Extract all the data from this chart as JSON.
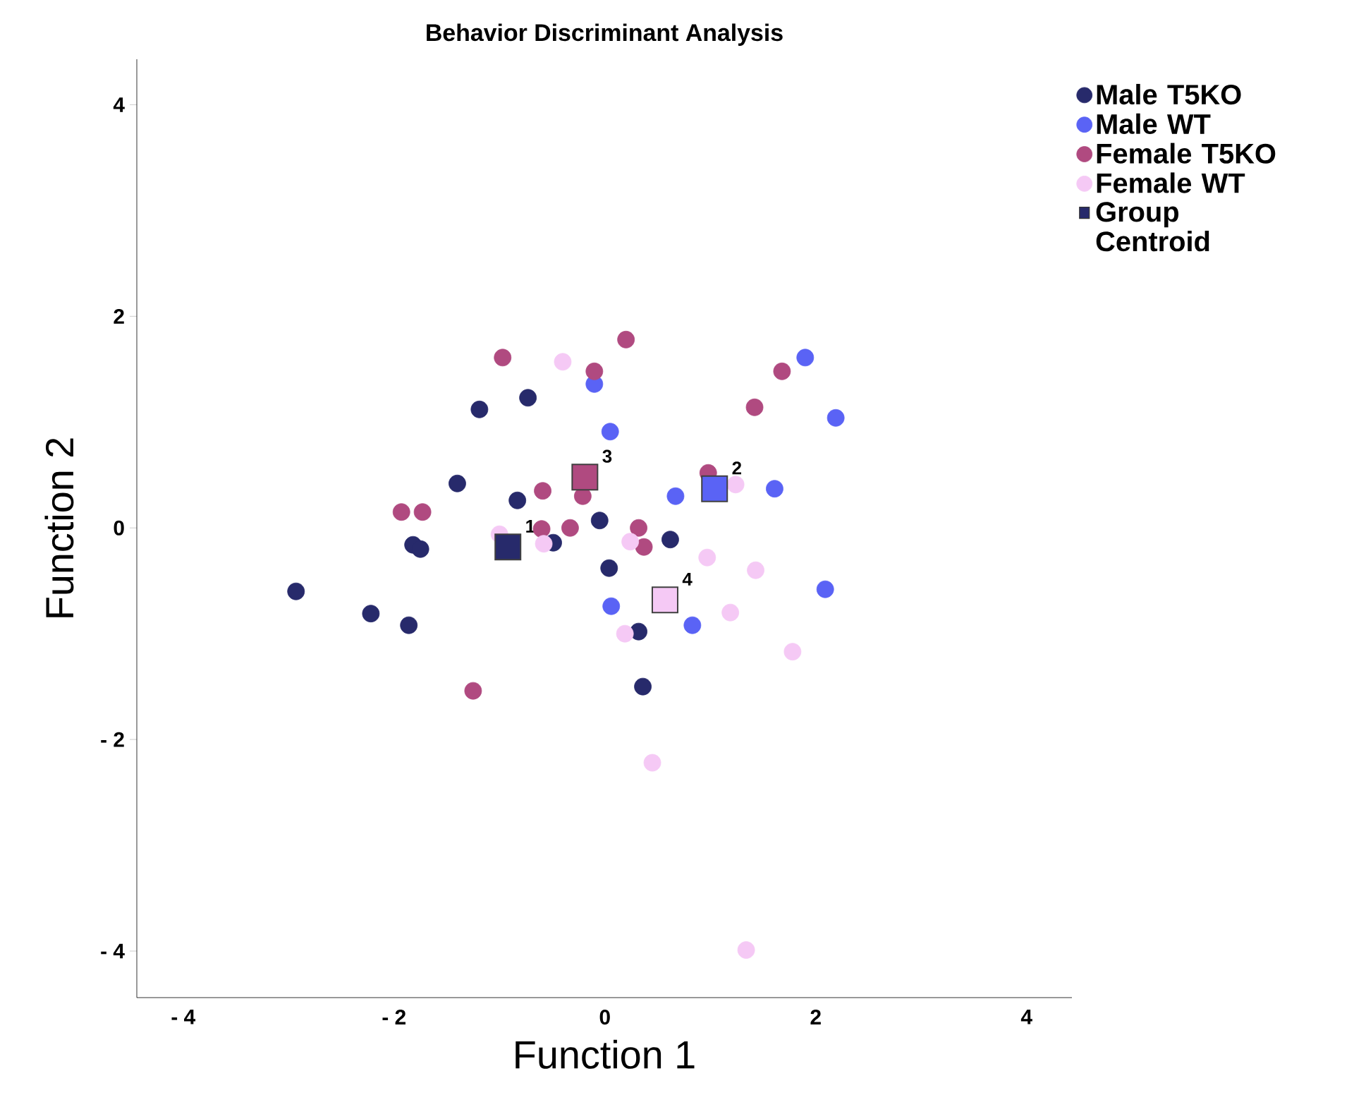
{
  "chart_data": {
    "type": "scatter",
    "title": "Behavior Discriminant Analysis",
    "xlabel": "Function 1",
    "ylabel": "Function 2",
    "xlim": [
      -4.44,
      4.43
    ],
    "ylim": [
      -4.44,
      4.43
    ],
    "xticks": [
      {
        "value": -4,
        "label": "- 4"
      },
      {
        "value": -2,
        "label": "- 2"
      },
      0,
      2,
      4
    ],
    "yticks": [
      {
        "value": -4,
        "label": "- 4"
      },
      {
        "value": -2,
        "label": "- 2"
      },
      0,
      2,
      4
    ],
    "grid": false,
    "legend": "top right",
    "series": [
      {
        "name": "Male T5KO",
        "color": "#272a6b",
        "marker": "circle",
        "x": [
          -1.19,
          -0.73,
          -1.4,
          -0.83,
          -1.82,
          -1.75,
          -0.49,
          -2.93,
          -2.22,
          -1.86,
          -0.05,
          0.62,
          0.04,
          0.32,
          0.36
        ],
        "values": [
          1.12,
          1.23,
          0.42,
          0.26,
          -0.16,
          -0.2,
          -0.14,
          -0.6,
          -0.81,
          -0.92,
          0.07,
          -0.11,
          -0.38,
          -0.98,
          -1.5
        ]
      },
      {
        "name": "Male WT",
        "color": "#5a63f5",
        "marker": "circle",
        "x": [
          -0.1,
          0.05,
          1.9,
          2.19,
          0.67,
          1.61,
          2.09,
          0.06,
          0.83
        ],
        "values": [
          1.36,
          0.91,
          1.61,
          1.04,
          0.3,
          0.37,
          -0.58,
          -0.74,
          -0.92
        ]
      },
      {
        "name": "Female T5KO",
        "color": "#b04a80",
        "marker": "circle",
        "x": [
          -0.97,
          -0.1,
          -0.59,
          -0.21,
          -1.93,
          -1.73,
          -0.6,
          -0.33,
          -1.25,
          0.2,
          1.68,
          1.42,
          0.98,
          0.32,
          0.37
        ],
        "values": [
          1.61,
          1.48,
          0.35,
          0.3,
          0.15,
          0.15,
          -0.01,
          0.0,
          -1.54,
          1.78,
          1.48,
          1.14,
          0.52,
          0.0,
          -0.18
        ]
      },
      {
        "name": "Female WT",
        "color": "#f5c9f5",
        "marker": "circle",
        "x": [
          -0.4,
          -1.0,
          -0.58,
          1.24,
          0.24,
          0.97,
          1.43,
          1.19,
          0.19,
          1.78,
          0.45,
          1.34
        ],
        "values": [
          1.57,
          -0.06,
          -0.15,
          0.41,
          -0.13,
          -0.28,
          -0.4,
          -0.8,
          -1.0,
          -1.17,
          -2.22,
          -3.99
        ]
      },
      {
        "name": "Group Centroid",
        "color": "#272a6b",
        "marker": "square",
        "colors": [
          "#272a6b",
          "#5a63f5",
          "#b04a80",
          "#f5c9f5"
        ],
        "x": [
          -0.92,
          1.04,
          -0.19,
          0.57
        ],
        "values": [
          -0.18,
          0.37,
          0.48,
          -0.68
        ]
      }
    ],
    "annotations": [
      {
        "text": "1",
        "x": -0.92,
        "y": -0.18
      },
      {
        "text": "2",
        "x": 1.04,
        "y": 0.37
      },
      {
        "text": "3",
        "x": -0.19,
        "y": 0.48
      },
      {
        "text": "4",
        "x": 0.57,
        "y": -0.68
      }
    ]
  }
}
